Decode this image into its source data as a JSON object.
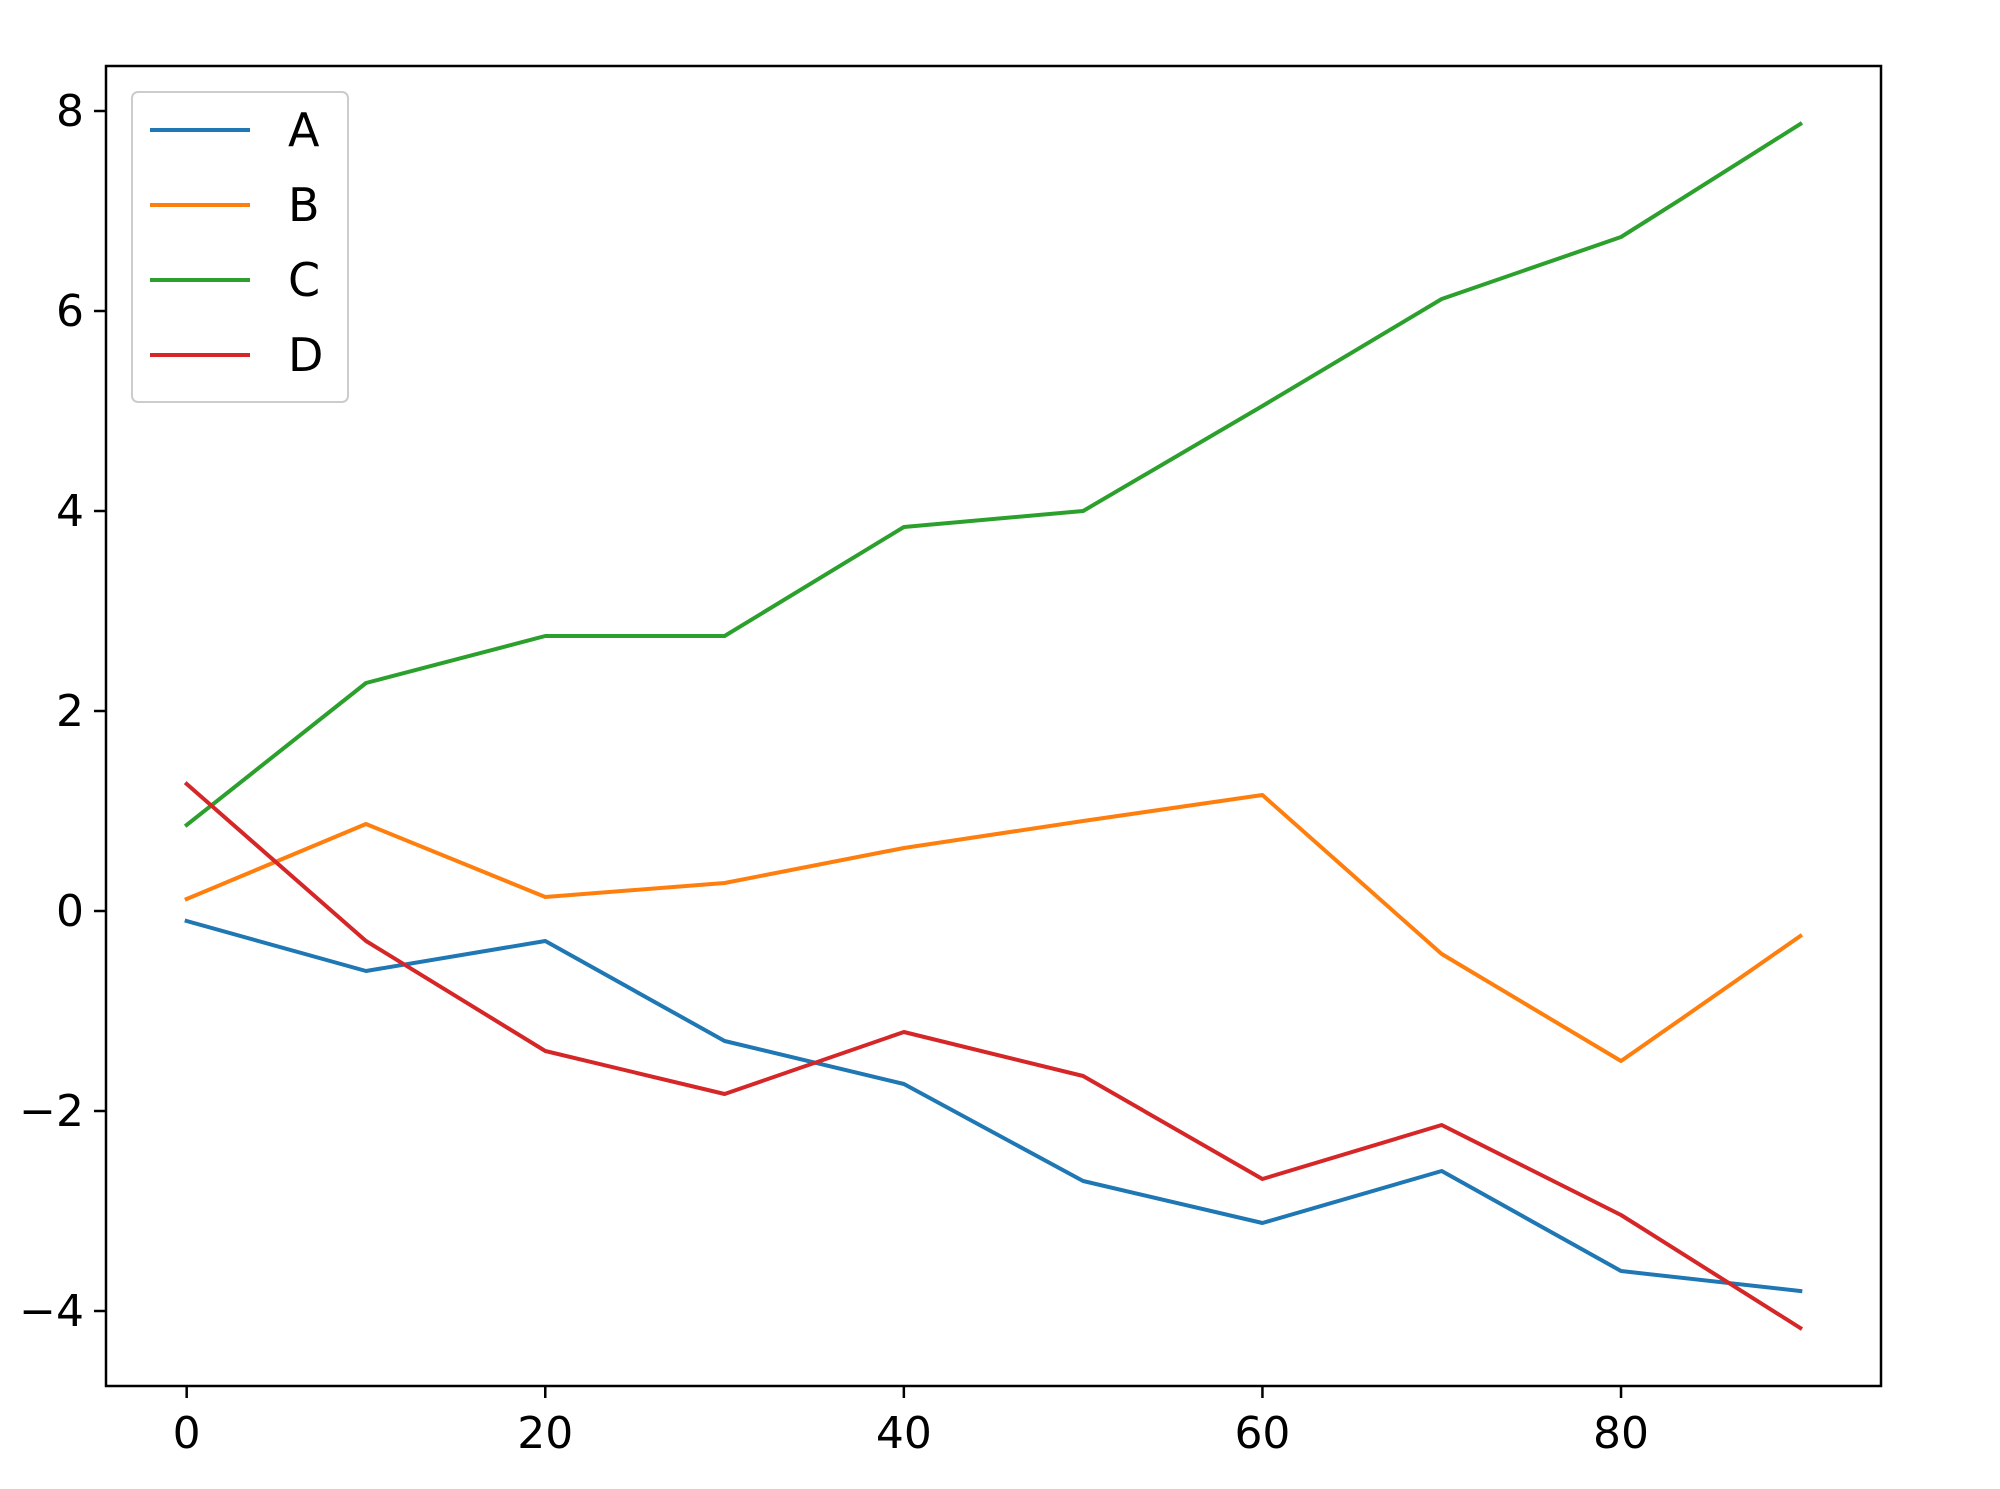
{
  "chart_data": {
    "type": "line",
    "title": "",
    "xlabel": "",
    "ylabel": "",
    "x": [
      0,
      10,
      20,
      30,
      40,
      50,
      60,
      70,
      80,
      90
    ],
    "xlim": [
      -4.5,
      94.5
    ],
    "ylim": [
      -4.75,
      8.45
    ],
    "xticks": [
      0,
      20,
      40,
      60,
      80
    ],
    "yticks": [
      -4,
      -2,
      0,
      2,
      4,
      6,
      8
    ],
    "xtick_labels": [
      "0",
      "20",
      "40",
      "60",
      "80"
    ],
    "ytick_labels": [
      "−4",
      "−2",
      "0",
      "2",
      "4",
      "6",
      "8"
    ],
    "grid": false,
    "legend_position": "upper-left",
    "series": [
      {
        "name": "A",
        "color": "#1f77b4",
        "values": [
          -0.1,
          -0.6,
          -0.3,
          -1.3,
          -1.73,
          -2.7,
          -3.12,
          -2.6,
          -3.6,
          -3.8
        ]
      },
      {
        "name": "B",
        "color": "#ff7f0e",
        "values": [
          0.12,
          0.87,
          0.14,
          0.28,
          0.63,
          0.9,
          1.16,
          -0.43,
          -1.5,
          -0.25
        ]
      },
      {
        "name": "C",
        "color": "#2ca02c",
        "values": [
          0.86,
          2.28,
          2.75,
          2.75,
          3.84,
          4.0,
          5.05,
          6.12,
          6.74,
          7.87
        ]
      },
      {
        "name": "D",
        "color": "#d62728",
        "values": [
          1.27,
          -0.3,
          -1.4,
          -1.83,
          -1.21,
          -1.65,
          -2.68,
          -2.14,
          -3.04,
          -4.17
        ]
      }
    ]
  }
}
